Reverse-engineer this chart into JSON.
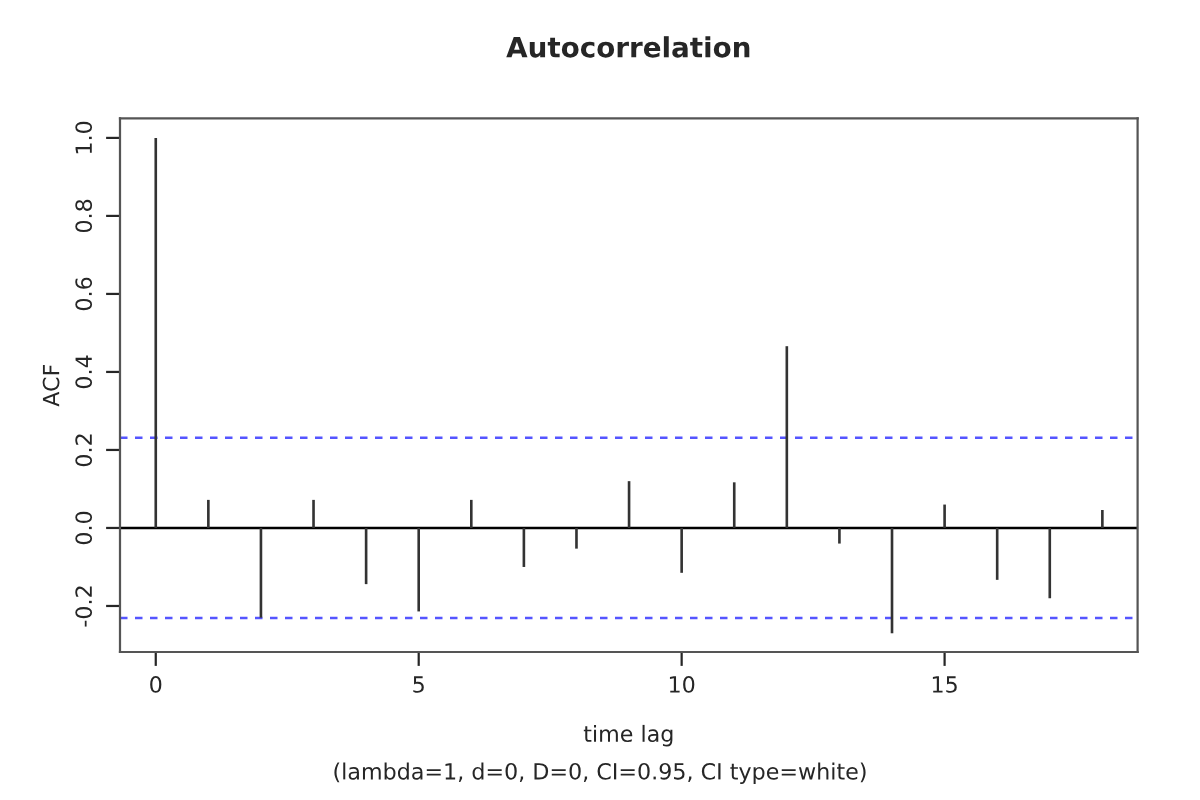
{
  "chart_data": {
    "type": "bar",
    "title": "Autocorrelation",
    "xlabel": "time lag",
    "ylabel": "ACF",
    "annotations": [
      "(lambda=1, d=0, D=0, CI=0.95, CI type=white)"
    ],
    "x": [
      0,
      1,
      2,
      3,
      4,
      5,
      6,
      7,
      8,
      9,
      10,
      11,
      12,
      13,
      14,
      15,
      16,
      17,
      18
    ],
    "values": [
      1.0,
      0.072,
      -0.23,
      0.072,
      -0.144,
      -0.214,
      0.072,
      -0.1,
      -0.053,
      0.12,
      -0.115,
      0.117,
      0.466,
      -0.04,
      -0.27,
      0.06,
      -0.133,
      -0.18,
      0.046
    ],
    "color": "#333333",
    "xlim": [
      -0.68,
      18.67
    ],
    "ylim": [
      -0.318,
      1.05
    ],
    "xticks": [
      0,
      5,
      10,
      15
    ],
    "yticks": [
      -0.2,
      {
        "value": 0,
        "label": "0.0"
      },
      0.2,
      0.4,
      0.6,
      0.8,
      {
        "value": 1,
        "label": "1.0"
      }
    ],
    "ref_lines": [
      {
        "axis": "y",
        "value": 0.0,
        "color": "#000000",
        "line_style": "solid"
      },
      {
        "axis": "y",
        "value": 0.231,
        "color": "#5555ff",
        "line_style": "dashed"
      },
      {
        "axis": "y",
        "value": -0.231,
        "color": "#5555ff",
        "line_style": "dashed"
      }
    ],
    "grid": false
  }
}
